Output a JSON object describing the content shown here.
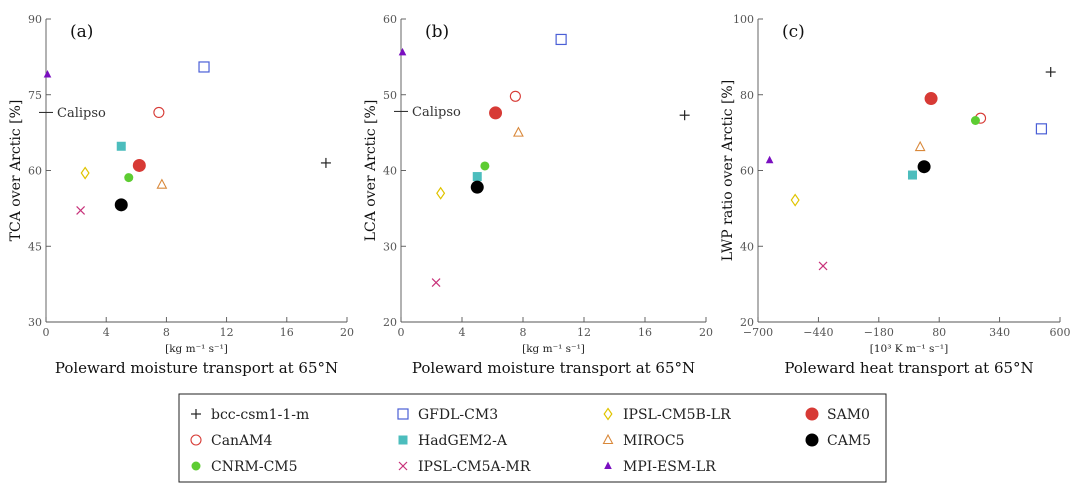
{
  "chart_data": [
    {
      "type": "scatter",
      "panel_label": "(a)",
      "ylabel": "TCA over Arctic [%]",
      "xunit": "[kg m⁻¹ s⁻¹]",
      "xtitle": "Poleward moisture transport at 65°N",
      "xlim": [
        0,
        20
      ],
      "ylim": [
        30,
        90
      ],
      "xticks": [
        0,
        4,
        8,
        12,
        16,
        20
      ],
      "yticks": [
        30,
        45,
        60,
        75,
        90
      ],
      "reference": {
        "label": "Calipso",
        "y": 71.5
      },
      "points": [
        {
          "model": "bcc-csm1-1-m",
          "x": 18.6,
          "y": 61.5
        },
        {
          "model": "GFDL-CM3",
          "x": 10.5,
          "y": 80.5
        },
        {
          "model": "IPSL-CM5B-LR",
          "x": 2.6,
          "y": 59.5
        },
        {
          "model": "SAM0",
          "x": 6.2,
          "y": 61.0
        },
        {
          "model": "CanAM4",
          "x": 7.5,
          "y": 71.5
        },
        {
          "model": "HadGEM2-A",
          "x": 5.0,
          "y": 64.8
        },
        {
          "model": "MIROC5",
          "x": 7.7,
          "y": 57.2
        },
        {
          "model": "CAM5",
          "x": 5.0,
          "y": 53.2
        },
        {
          "model": "CNRM-CM5",
          "x": 5.5,
          "y": 58.6
        },
        {
          "model": "IPSL-CM5A-MR",
          "x": 2.3,
          "y": 52.1
        },
        {
          "model": "MPI-ESM-LR",
          "x": 0.1,
          "y": 79.0
        }
      ]
    },
    {
      "type": "scatter",
      "panel_label": "(b)",
      "ylabel": "LCA over Arctic [%]",
      "xunit": "[kg m⁻¹ s⁻¹]",
      "xtitle": "Poleward moisture transport at 65°N",
      "xlim": [
        0,
        20
      ],
      "ylim": [
        20,
        60
      ],
      "xticks": [
        0,
        4,
        8,
        12,
        16,
        20
      ],
      "yticks": [
        20,
        30,
        40,
        50,
        60
      ],
      "reference": {
        "label": "Calipso",
        "y": 47.8
      },
      "points": [
        {
          "model": "bcc-csm1-1-m",
          "x": 18.6,
          "y": 47.3
        },
        {
          "model": "GFDL-CM3",
          "x": 10.5,
          "y": 57.3
        },
        {
          "model": "IPSL-CM5B-LR",
          "x": 2.6,
          "y": 37.0
        },
        {
          "model": "SAM0",
          "x": 6.2,
          "y": 47.6
        },
        {
          "model": "CanAM4",
          "x": 7.5,
          "y": 49.8
        },
        {
          "model": "HadGEM2-A",
          "x": 5.0,
          "y": 39.2
        },
        {
          "model": "MIROC5",
          "x": 7.7,
          "y": 45.0
        },
        {
          "model": "CAM5",
          "x": 5.0,
          "y": 37.8
        },
        {
          "model": "CNRM-CM5",
          "x": 5.5,
          "y": 40.6
        },
        {
          "model": "IPSL-CM5A-MR",
          "x": 2.3,
          "y": 25.2
        },
        {
          "model": "MPI-ESM-LR",
          "x": 0.1,
          "y": 55.6
        }
      ]
    },
    {
      "type": "scatter",
      "panel_label": "(c)",
      "ylabel": "LWP ratio over Arctic [%]",
      "xunit": "[10³ K m⁻¹ s⁻¹]",
      "xtitle": "Poleward heat transport at 65°N",
      "xlim": [
        -700,
        600
      ],
      "ylim": [
        20,
        100
      ],
      "xticks": [
        -700,
        -440,
        -180,
        80,
        340,
        600
      ],
      "yticks": [
        20,
        40,
        60,
        80,
        100
      ],
      "points": [
        {
          "model": "bcc-csm1-1-m",
          "x": 560,
          "y": 86.0
        },
        {
          "model": "GFDL-CM3",
          "x": 520,
          "y": 71.0
        },
        {
          "model": "IPSL-CM5B-LR",
          "x": -540,
          "y": 52.2
        },
        {
          "model": "SAM0",
          "x": 45,
          "y": 79.0
        },
        {
          "model": "CanAM4",
          "x": 258,
          "y": 73.8
        },
        {
          "model": "HadGEM2-A",
          "x": -35,
          "y": 58.8
        },
        {
          "model": "MIROC5",
          "x": -2,
          "y": 66.2
        },
        {
          "model": "CAM5",
          "x": 15,
          "y": 61.0
        },
        {
          "model": "CNRM-CM5",
          "x": 236,
          "y": 73.2
        },
        {
          "model": "IPSL-CM5A-MR",
          "x": -420,
          "y": 34.8
        },
        {
          "model": "MPI-ESM-LR",
          "x": -650,
          "y": 62.7
        }
      ]
    }
  ],
  "legend": [
    {
      "name": "bcc-csm1-1-m",
      "marker": "plus",
      "color": "#222222"
    },
    {
      "name": "GFDL-CM3",
      "marker": "square-open",
      "color": "#4a5fd6"
    },
    {
      "name": "IPSL-CM5B-LR",
      "marker": "diamond-open",
      "color": "#e0c400"
    },
    {
      "name": "SAM0",
      "marker": "circle-filled",
      "color": "#d73a35"
    },
    {
      "name": "CanAM4",
      "marker": "circle-open",
      "color": "#d73a35"
    },
    {
      "name": "HadGEM2-A",
      "marker": "square-filled",
      "color": "#4cbdbd"
    },
    {
      "name": "MIROC5",
      "marker": "triangle-open",
      "color": "#d9883a"
    },
    {
      "name": "CAM5",
      "marker": "circle-filled",
      "color": "#000000"
    },
    {
      "name": "CNRM-CM5",
      "marker": "circle-filled",
      "color": "#5dcc32"
    },
    {
      "name": "IPSL-CM5A-MR",
      "marker": "cross",
      "color": "#c8327a"
    },
    {
      "name": "MPI-ESM-LR",
      "marker": "triangle-filled",
      "color": "#7a0fc0"
    }
  ]
}
